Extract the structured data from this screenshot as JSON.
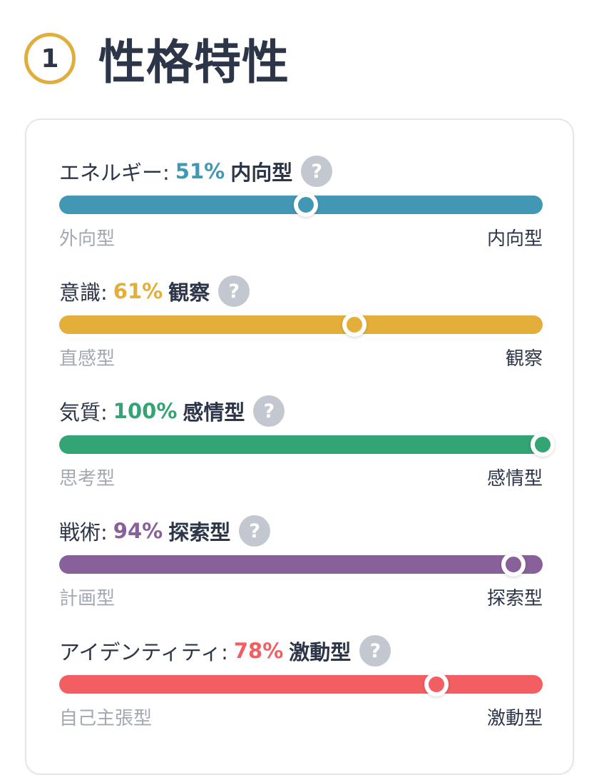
{
  "header": {
    "step_number": "1",
    "title": "性格特性"
  },
  "help_glyph": "?",
  "traits": [
    {
      "name": "エネルギー:",
      "percent_label": "51%",
      "type_label": "内向型",
      "value": 0.51,
      "color": "#4298b4",
      "left_label": "外向型",
      "right_label": "内向型"
    },
    {
      "name": "意識:",
      "percent_label": "61%",
      "type_label": "観察",
      "value": 0.61,
      "color": "#e4ae3a",
      "left_label": "直感型",
      "right_label": "観察"
    },
    {
      "name": "気質:",
      "percent_label": "100%",
      "type_label": "感情型",
      "value": 1.0,
      "color": "#33a474",
      "left_label": "思考型",
      "right_label": "感情型"
    },
    {
      "name": "戦術:",
      "percent_label": "94%",
      "type_label": "探索型",
      "value": 0.94,
      "color": "#88619a",
      "left_label": "計画型",
      "right_label": "探索型"
    },
    {
      "name": "アイデンティティ:",
      "percent_label": "78%",
      "type_label": "激動型",
      "value": 0.78,
      "color": "#f25e62",
      "left_label": "自己主張型",
      "right_label": "激動型"
    }
  ]
}
